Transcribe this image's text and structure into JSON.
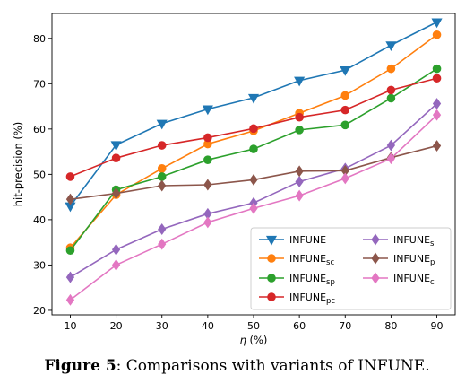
{
  "caption": {
    "label": "Figure 5",
    "text": ": Comparisons with variants of INFUNE."
  },
  "chart_data": {
    "type": "line",
    "xlabel_italic": "η",
    "xlabel_rest": " (%)",
    "ylabel": "hit-precision (%)",
    "x": [
      10,
      20,
      30,
      40,
      50,
      60,
      70,
      80,
      90
    ],
    "xlim": [
      6,
      94
    ],
    "ylim": [
      19,
      85.5
    ],
    "yticks": [
      20,
      30,
      40,
      50,
      60,
      70,
      80
    ],
    "grid": false,
    "legend_position": "lower-right",
    "series": [
      {
        "name": "INFUNE",
        "sub": "",
        "color": "#1f77b4",
        "marker": "triangle-down",
        "values": [
          43.0,
          56.5,
          61.2,
          64.4,
          66.9,
          70.7,
          73.0,
          78.5,
          83.6
        ]
      },
      {
        "name": "INFUNE",
        "sub": "sc",
        "color": "#ff7f0e",
        "marker": "circle",
        "values": [
          33.8,
          45.5,
          51.3,
          56.7,
          59.6,
          63.5,
          67.4,
          73.3,
          80.8
        ]
      },
      {
        "name": "INFUNE",
        "sub": "sp",
        "color": "#2ca02c",
        "marker": "circle",
        "values": [
          33.2,
          46.6,
          49.5,
          53.2,
          55.6,
          59.8,
          60.9,
          66.8,
          73.3
        ]
      },
      {
        "name": "INFUNE",
        "sub": "pc",
        "color": "#d62728",
        "marker": "circle",
        "values": [
          49.5,
          53.6,
          56.4,
          58.1,
          60.1,
          62.6,
          64.2,
          68.6,
          71.2
        ]
      },
      {
        "name": "INFUNE",
        "sub": "s",
        "color": "#9467bd",
        "marker": "diamond",
        "values": [
          27.3,
          33.4,
          37.9,
          41.3,
          43.7,
          48.4,
          51.3,
          56.4,
          65.6
        ]
      },
      {
        "name": "INFUNE",
        "sub": "p",
        "color": "#8c564b",
        "marker": "diamond",
        "values": [
          44.5,
          45.8,
          47.5,
          47.7,
          48.8,
          50.7,
          50.8,
          53.7,
          56.3
        ]
      },
      {
        "name": "INFUNE",
        "sub": "c",
        "color": "#e377c2",
        "marker": "diamond",
        "values": [
          22.3,
          30.0,
          34.6,
          39.4,
          42.5,
          45.3,
          49.1,
          53.5,
          63.1
        ]
      }
    ]
  }
}
